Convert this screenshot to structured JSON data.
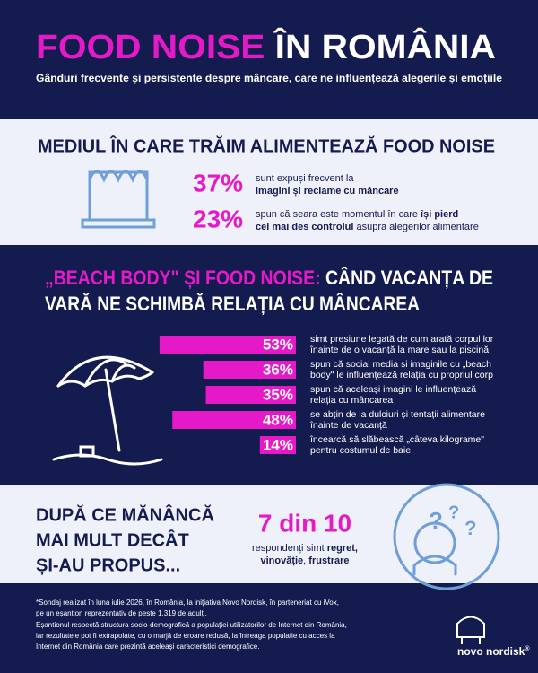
{
  "header": {
    "title_1": "FOOD NOISE",
    "title_2": "ÎN ROMÂNIA",
    "subtitle": "Gânduri frecvente și persistente despre mâncare, care ne influențează alegerile și emoțiile"
  },
  "section1": {
    "title": "MEDIUL ÎN CARE TRĂIM ALIMENTEAZĂ FOOD NOISE",
    "stats": [
      {
        "figure": "37%",
        "lines": [
          [
            {
              "text": "sunt expuși frecvent la",
              "bold": false
            }
          ],
          [
            {
              "text": "imagini și reclame cu mâncare",
              "bold": true
            }
          ]
        ]
      },
      {
        "figure": "23%",
        "lines": [
          [
            {
              "text": "spun că seara este momentul în care ",
              "bold": false
            },
            {
              "text": "își pierd",
              "bold": true
            }
          ],
          [
            {
              "text": "cel mai des controlul",
              "bold": true
            },
            {
              "text": " asupra alegerilor alimentare",
              "bold": false
            }
          ]
        ]
      }
    ]
  },
  "section2": {
    "title_highlight": "„BEACH BODY\" ȘI FOOD NOISE:",
    "title_line1_rest": " CÂND VACANȚA DE",
    "title_line2": "VARĂ NE SCHIMBĂ RELAȚIA CU MÂNCAREA",
    "bar_color": "#e619c8",
    "bars": [
      {
        "value": 53,
        "label": "53%",
        "lines": [
          "simt presiune legată de cum arată corpul lor",
          "înainte de o vacanță la mare sau la piscină"
        ]
      },
      {
        "value": 36,
        "label": "36%",
        "lines": [
          "spun că social media și imaginile cu „beach",
          "body\" le influențează relația cu propriul corp"
        ]
      },
      {
        "value": 35,
        "label": "35%",
        "lines": [
          "spun că aceleași imagini le influențează",
          "relația cu mâncarea"
        ]
      },
      {
        "value": 48,
        "label": "48%",
        "lines": [
          "se abțin de la dulciuri și tentații alimentare",
          "înainte de vacanță"
        ]
      },
      {
        "value": 14,
        "label": "14%",
        "lines": [
          "încearcă să slăbească „câteva kilograme\"",
          "pentru costumul de baie"
        ]
      }
    ]
  },
  "section3": {
    "title_lines": [
      "DUPĂ CE MĂNÂNCĂ",
      "MAI MULT DECÂT",
      "ȘI-AU PROPUS..."
    ],
    "figure": "7 din 10",
    "lines": [
      [
        {
          "text": "respondenți simt ",
          "bold": false
        },
        {
          "text": "regret,",
          "bold": true
        }
      ],
      [
        {
          "text": "vinovăție",
          "bold": true
        },
        {
          "text": ", ",
          "bold": false
        },
        {
          "text": "frustrare",
          "bold": true
        }
      ]
    ]
  },
  "footer": {
    "notes": [
      "*Sondaj realizat în luna iulie 2026, în România, la inițiativa Novo Nordisk, în parteneriat cu iVox,",
      "pe un eșantion reprezentativ de peste 1.319 de adulți.",
      "Eșantionul respectă structura socio-demografică a populației utilizatorilor de Internet din România,",
      "iar rezultatele pot fi extrapolate, cu o marjă de eroare redusă, la întreaga populație cu acces la",
      "Internet din România care prezintă aceleași caracteristici demografice."
    ],
    "logo": "novo nordisk",
    "registered": "®"
  }
}
